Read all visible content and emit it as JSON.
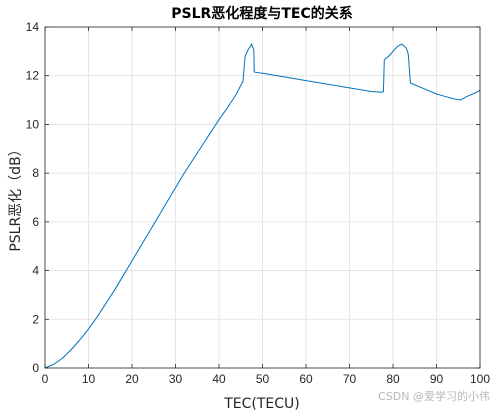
{
  "chart_data": {
    "type": "line",
    "title": "PSLR恶化程度与TEC的关系",
    "xlabel": "TEC(TECU)",
    "ylabel": "PSLR恶化（dB）",
    "xlim": [
      0,
      100
    ],
    "ylim": [
      0,
      14
    ],
    "xticks": [
      "0",
      "10",
      "20",
      "30",
      "40",
      "50",
      "60",
      "70",
      "80",
      "90",
      "100"
    ],
    "yticks": [
      "0",
      "2",
      "4",
      "6",
      "8",
      "10",
      "12",
      "14"
    ],
    "grid": true,
    "line_color": "#0072BD",
    "series": [
      {
        "x": [
          0,
          2,
          4,
          6,
          8,
          10,
          12,
          14,
          16,
          18,
          20,
          22,
          24,
          26,
          28,
          30,
          32,
          34,
          36,
          38,
          40,
          42,
          44,
          45,
          45.5,
          46,
          46.5,
          47,
          47.5,
          48,
          48.1,
          50,
          55,
          60,
          65,
          70,
          75,
          77.5,
          77.8,
          78,
          79,
          80,
          81,
          82,
          83,
          83.5,
          84,
          86,
          88,
          90,
          92,
          94,
          95.5,
          97,
          99,
          100
        ],
        "y": [
          0,
          0.15,
          0.4,
          0.75,
          1.15,
          1.6,
          2.1,
          2.65,
          3.2,
          3.8,
          4.4,
          5.0,
          5.6,
          6.2,
          6.8,
          7.4,
          8.0,
          8.55,
          9.1,
          9.65,
          10.2,
          10.7,
          11.25,
          11.6,
          11.75,
          12.8,
          13.0,
          13.15,
          13.3,
          13.05,
          12.15,
          12.1,
          11.95,
          11.8,
          11.65,
          11.5,
          11.35,
          11.32,
          11.35,
          12.65,
          12.8,
          13.0,
          13.2,
          13.3,
          13.15,
          12.9,
          11.7,
          11.55,
          11.4,
          11.25,
          11.15,
          11.05,
          11.0,
          11.15,
          11.3,
          11.4
        ]
      }
    ]
  },
  "watermark": "CSDN @爱学习的小伟"
}
